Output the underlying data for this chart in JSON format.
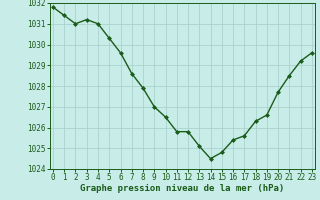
{
  "x": [
    0,
    1,
    2,
    3,
    4,
    5,
    6,
    7,
    8,
    9,
    10,
    11,
    12,
    13,
    14,
    15,
    16,
    17,
    18,
    19,
    20,
    21,
    22,
    23
  ],
  "y": [
    1031.8,
    1031.4,
    1031.0,
    1031.2,
    1031.0,
    1030.3,
    1029.6,
    1028.6,
    1027.9,
    1027.0,
    1026.5,
    1025.8,
    1025.8,
    1025.1,
    1024.5,
    1024.8,
    1025.4,
    1025.6,
    1026.3,
    1026.6,
    1027.7,
    1028.5,
    1029.2,
    1029.6
  ],
  "line_color": "#1a5c1a",
  "marker": "D",
  "marker_size": 2.0,
  "line_width": 1.0,
  "bg_color": "#c8ece8",
  "grid_color": "#a8d4cc",
  "xlabel": "Graphe pression niveau de la mer (hPa)",
  "xlabel_color": "#1a5c1a",
  "xlabel_fontsize": 6.5,
  "tick_color": "#1a5c1a",
  "tick_fontsize": 5.5,
  "ylim": [
    1024.0,
    1032.0
  ],
  "yticks": [
    1024,
    1025,
    1026,
    1027,
    1028,
    1029,
    1030,
    1031,
    1032
  ],
  "xticks": [
    0,
    1,
    2,
    3,
    4,
    5,
    6,
    7,
    8,
    9,
    10,
    11,
    12,
    13,
    14,
    15,
    16,
    17,
    18,
    19,
    20,
    21,
    22,
    23
  ],
  "xlim": [
    -0.3,
    23.3
  ]
}
